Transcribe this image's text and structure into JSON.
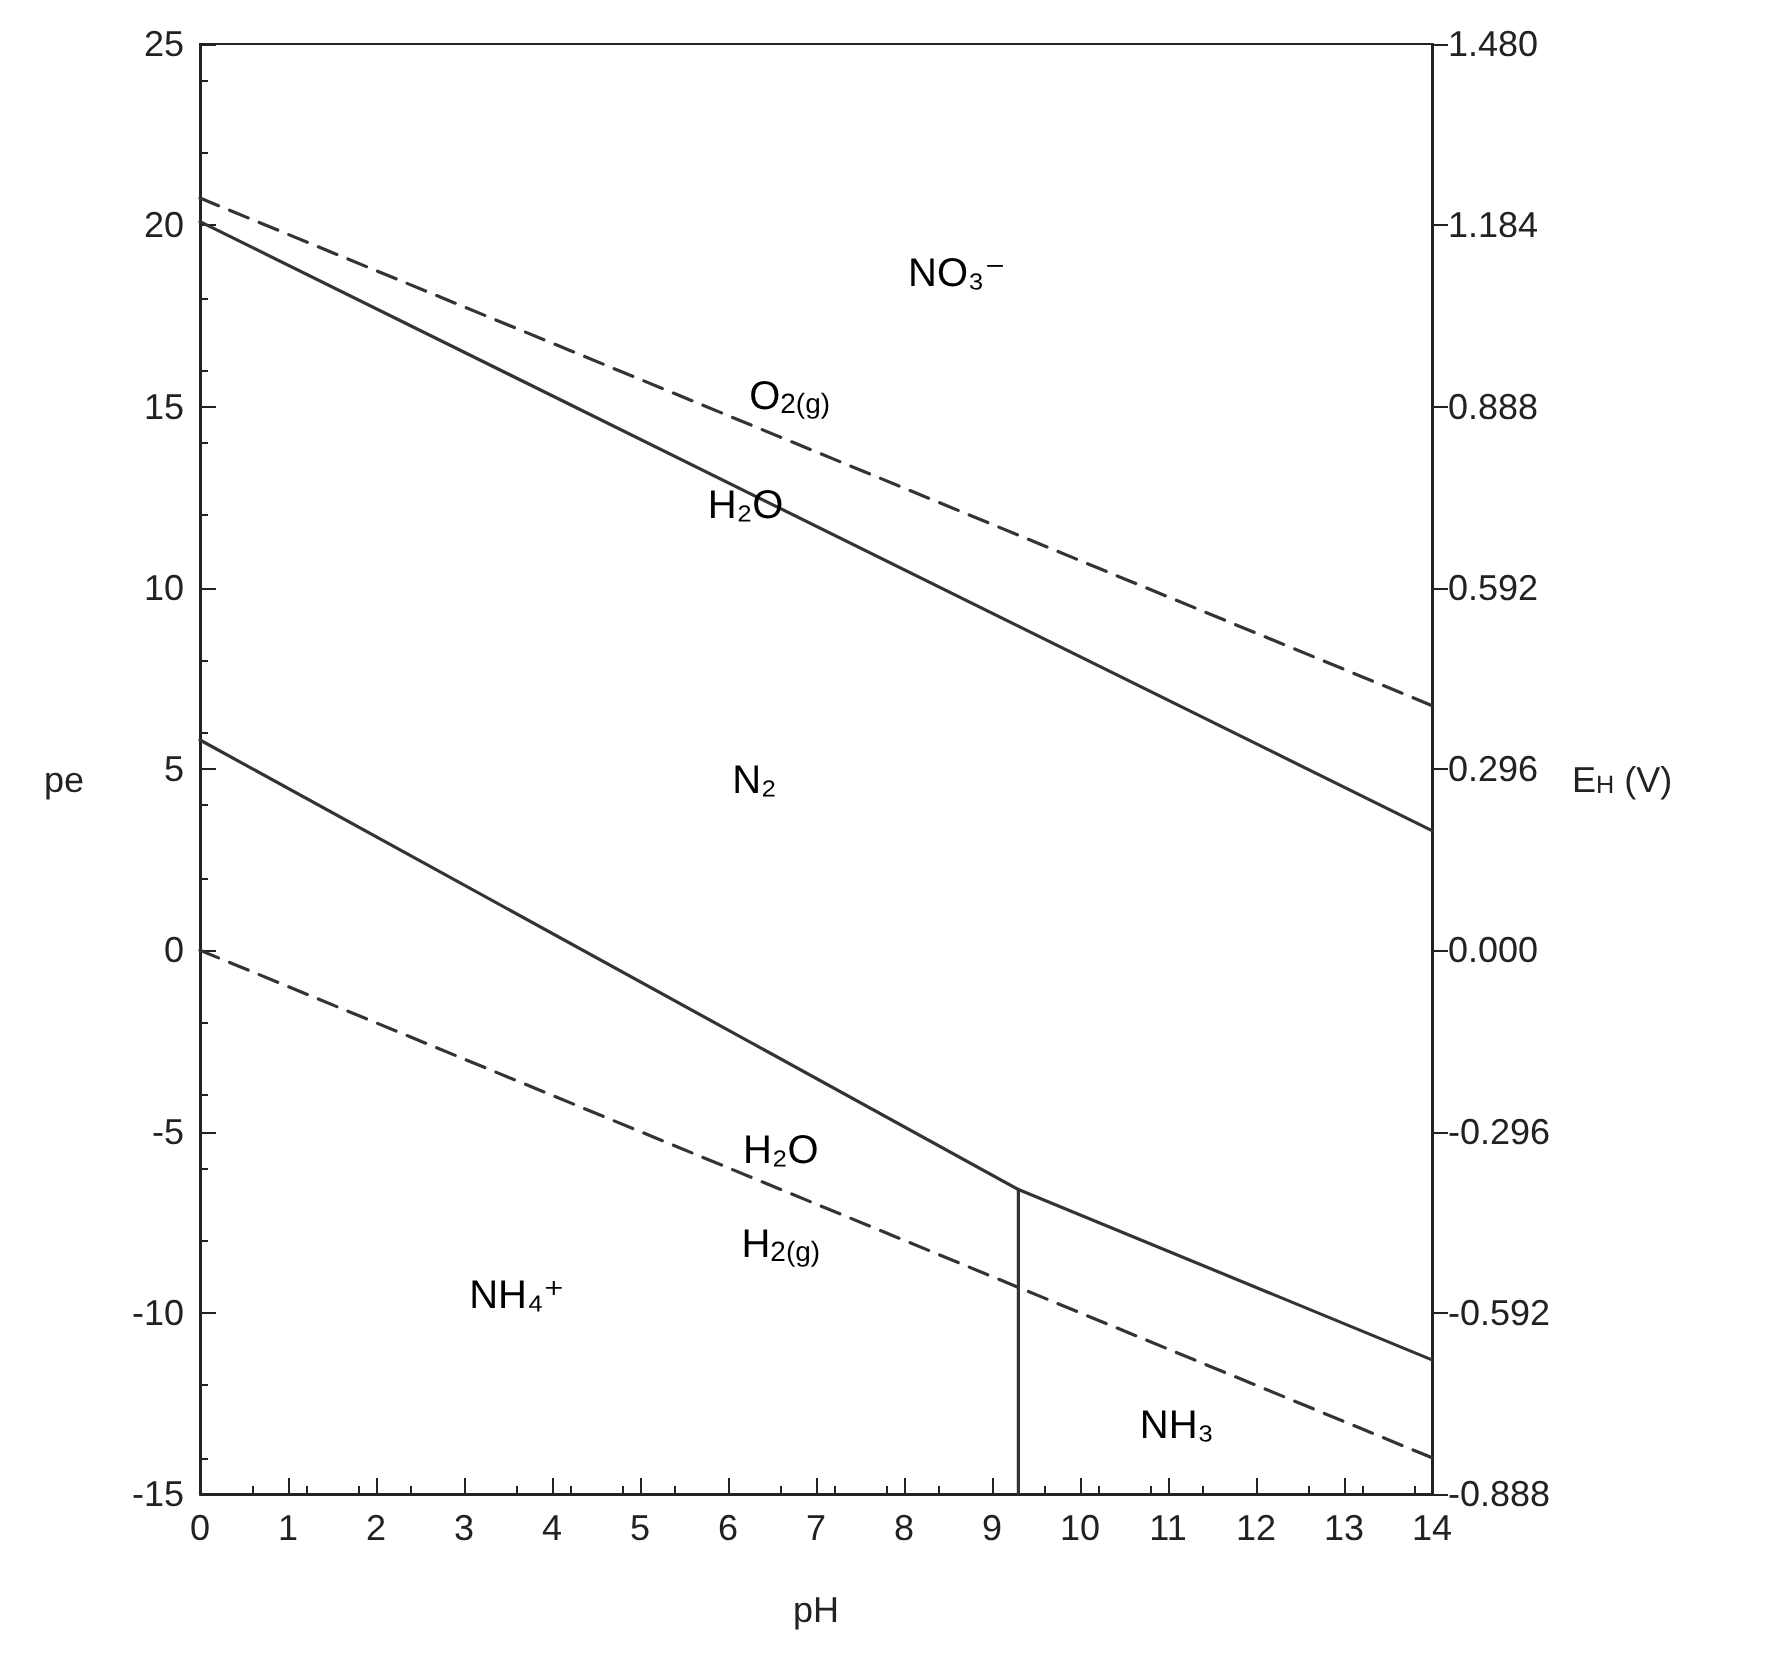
{
  "chart_data": {
    "type": "line",
    "xlabel": "pH",
    "ylabel": "pe",
    "y2label": "E$_{H}$ (V)",
    "xlim": [
      0,
      14
    ],
    "xticks": [
      0,
      1,
      2,
      3,
      4,
      5,
      6,
      7,
      8,
      9,
      10,
      11,
      12,
      13,
      14
    ],
    "ylim": [
      -15,
      25
    ],
    "yticks": [
      -15,
      -10,
      -5,
      0,
      5,
      10,
      15,
      20,
      25
    ],
    "y2lim": [
      -0.888,
      1.48
    ],
    "y2ticks": [
      {
        "value": -0.888,
        "label": "-0.888"
      },
      {
        "value": -0.592,
        "label": "-0.592"
      },
      {
        "value": -0.296,
        "label": "-0.296"
      },
      {
        "value": 0,
        "label": "0.000"
      },
      {
        "value": 0.296,
        "label": "0.296"
      },
      {
        "value": 0.592,
        "label": "0.592"
      },
      {
        "value": 0.888,
        "label": "0.888"
      },
      {
        "value": 1.184,
        "label": "1.184"
      },
      {
        "value": 1.48,
        "label": "1.480"
      }
    ],
    "grid": false,
    "marker": "none",
    "series": [
      {
        "x": [
          0,
          14
        ],
        "values": [
          20.75,
          6.75
        ],
        "color": "#333333",
        "line_style": "dashed"
      },
      {
        "x": [
          0,
          14
        ],
        "values": [
          20.1,
          3.3
        ],
        "color": "#333333",
        "line_style": "solid"
      },
      {
        "x": [
          0,
          9.3,
          14
        ],
        "values": [
          5.8,
          -6.6,
          -11.3
        ],
        "color": "#333333",
        "line_style": "solid"
      },
      {
        "x": [
          9.3,
          9.3
        ],
        "values": [
          -15,
          -6.6
        ],
        "color": "#333333",
        "line_style": "solid"
      },
      {
        "x": [
          0,
          14
        ],
        "values": [
          0,
          -14
        ],
        "color": "#333333",
        "line_style": "dashed"
      }
    ],
    "annotations": [
      "NO₃⁻",
      "O$_{2(g)}$",
      "H₂O",
      "N₂",
      "H₂O",
      "H$_{2(g)}$",
      "NH₄⁺",
      "NH₃"
    ]
  }
}
